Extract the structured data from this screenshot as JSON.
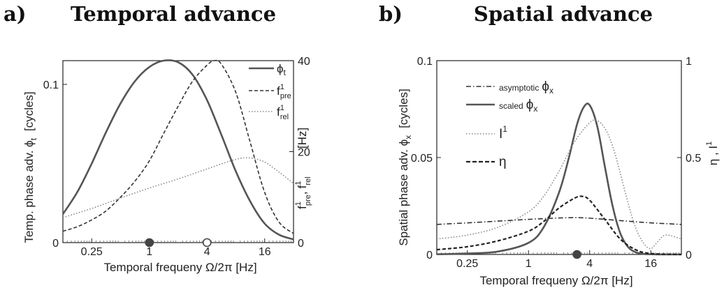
{
  "panels": [
    {
      "letter": "a)",
      "title": "Temporal advance",
      "xlabel": "Temporal frequeny Ω/2π   [Hz]",
      "ylabel_left": "Temp. phase adv. ϕ",
      "ylabel_left_sub": "t",
      "ylabel_left_unit": "[cycles]",
      "ylabel_right_unit": "[Hz]",
      "ylabel_right_f": "f",
      "ylabel_right_pre": "pre",
      "ylabel_right_rel": "rel",
      "ylabel_right_sup": "1",
      "ylabel_right_sep": ",",
      "xticks": [
        "0.25",
        "1",
        "4",
        "16"
      ],
      "yticks_left": [
        "0",
        "0.1"
      ],
      "yticks_right": [
        "0",
        "20",
        "40"
      ],
      "legend": [
        {
          "base": "ϕ",
          "sub": "t",
          "sup": "",
          "style": "solid"
        },
        {
          "base": "f",
          "sub": "pre",
          "sup": "1",
          "style": "dashed"
        },
        {
          "base": "f",
          "sub": "rel",
          "sup": "1",
          "style": "dotted"
        }
      ]
    },
    {
      "letter": "b)",
      "title": "Spatial advance",
      "xlabel": "Temporal frequeny Ω/2π   [Hz]",
      "ylabel_left": "Spatial phase adv. ϕ",
      "ylabel_left_sub": "x",
      "ylabel_left_unit": "[cycles]",
      "ylabel_right": "η , I",
      "ylabel_right_sup": "1",
      "xticks": [
        "0.25",
        "1",
        "4",
        "16"
      ],
      "yticks_left": [
        "0",
        "0.05",
        "0.1"
      ],
      "yticks_right": [
        "0",
        "0.5",
        "1"
      ],
      "legend": [
        {
          "prefix": "asymptotic",
          "base": "ϕ",
          "sub": "x",
          "sup": "",
          "style": "dashdot"
        },
        {
          "prefix": "scaled",
          "base": "ϕ",
          "sub": "x",
          "sup": "",
          "style": "solid"
        },
        {
          "prefix": "",
          "base": "I",
          "sub": "",
          "sup": "1",
          "style": "dotted"
        },
        {
          "prefix": "",
          "base": "η",
          "sub": "",
          "sup": "",
          "style": "dashed"
        }
      ]
    }
  ],
  "chart_data": [
    {
      "type": "line",
      "x_scale": "log2",
      "xlim": [
        0.125,
        32
      ],
      "ylim_left": [
        0,
        0.115
      ],
      "ylim_right": [
        0,
        40
      ],
      "markers": [
        {
          "x": 1,
          "fill": "filled"
        },
        {
          "x": 4,
          "fill": "open"
        }
      ],
      "series": [
        {
          "axis": "left",
          "style": "solid",
          "color": "#555555",
          "x": [
            0.125,
            0.177,
            0.25,
            0.354,
            0.5,
            0.707,
            1,
            1.41,
            2,
            2.83,
            4,
            5.66,
            8,
            11.3,
            16,
            22.6,
            32
          ],
          "y": [
            0.018,
            0.032,
            0.05,
            0.07,
            0.088,
            0.102,
            0.111,
            0.115,
            0.114,
            0.106,
            0.09,
            0.068,
            0.045,
            0.026,
            0.012,
            0.005,
            0.002
          ]
        },
        {
          "axis": "right",
          "style": "dashed",
          "color": "#333333",
          "x": [
            0.125,
            0.177,
            0.25,
            0.354,
            0.5,
            0.707,
            1,
            1.41,
            2,
            2.83,
            4,
            4.76,
            5.66,
            8,
            11.3,
            16,
            22.6,
            32
          ],
          "y": [
            2.5,
            3.5,
            5,
            7,
            10,
            13.5,
            18,
            24,
            30,
            35.5,
            39,
            40,
            39.2,
            33,
            22,
            11,
            4.5,
            2
          ]
        },
        {
          "axis": "right",
          "style": "dotted",
          "color": "#888888",
          "x": [
            0.125,
            0.25,
            0.5,
            1,
            2,
            4,
            8,
            11.3,
            16,
            22.6,
            32
          ],
          "y": [
            5.5,
            7.5,
            9.8,
            12,
            14,
            16.2,
            18.3,
            18.6,
            17.7,
            15.5,
            13
          ]
        }
      ]
    },
    {
      "type": "line",
      "x_scale": "log2",
      "xlim": [
        0.125,
        32
      ],
      "ylim_left": [
        0,
        0.1
      ],
      "ylim_right": [
        0,
        1
      ],
      "markers": [
        {
          "x": 3,
          "fill": "filled"
        }
      ],
      "series": [
        {
          "axis": "left",
          "style": "dashdot",
          "color": "#333333",
          "x": [
            0.125,
            0.25,
            0.5,
            1,
            2,
            3,
            4,
            8,
            16,
            32
          ],
          "y": [
            0.0155,
            0.0163,
            0.0172,
            0.0181,
            0.0188,
            0.019,
            0.0187,
            0.0175,
            0.0163,
            0.0155
          ]
        },
        {
          "axis": "left",
          "style": "solid",
          "color": "#555555",
          "x": [
            0.125,
            0.25,
            0.5,
            1,
            1.41,
            2,
            2.5,
            3,
            3.5,
            4,
            4.76,
            5.66,
            6.73,
            8,
            9.51,
            11.3,
            13.5,
            16,
            22.6,
            32
          ],
          "y": [
            0.0001,
            0.0005,
            0.0015,
            0.006,
            0.014,
            0.032,
            0.05,
            0.067,
            0.076,
            0.077,
            0.066,
            0.045,
            0.025,
            0.011,
            0.004,
            0.0012,
            0.0003,
            0.0001,
            0.0,
            0.0
          ]
        },
        {
          "axis": "right",
          "style": "dotted",
          "color": "#888888",
          "x": [
            0.125,
            0.25,
            0.5,
            1,
            1.41,
            2,
            2.83,
            4,
            4.76,
            5.66,
            6.73,
            8,
            9.51,
            11.3,
            13.5,
            16,
            19,
            22.6,
            32
          ],
          "y": [
            0.08,
            0.1,
            0.14,
            0.22,
            0.3,
            0.43,
            0.58,
            0.68,
            0.69,
            0.65,
            0.56,
            0.42,
            0.27,
            0.14,
            0.06,
            0.03,
            0.07,
            0.1,
            0.08
          ]
        },
        {
          "axis": "right",
          "style": "dashed",
          "color": "#222222",
          "x": [
            0.125,
            0.25,
            0.5,
            1,
            1.41,
            2,
            2.83,
            3.36,
            4,
            5.66,
            8,
            11.3,
            16,
            32
          ],
          "y": [
            0.025,
            0.04,
            0.07,
            0.12,
            0.17,
            0.24,
            0.29,
            0.3,
            0.28,
            0.18,
            0.08,
            0.025,
            0.005,
            0.0
          ]
        }
      ]
    }
  ]
}
